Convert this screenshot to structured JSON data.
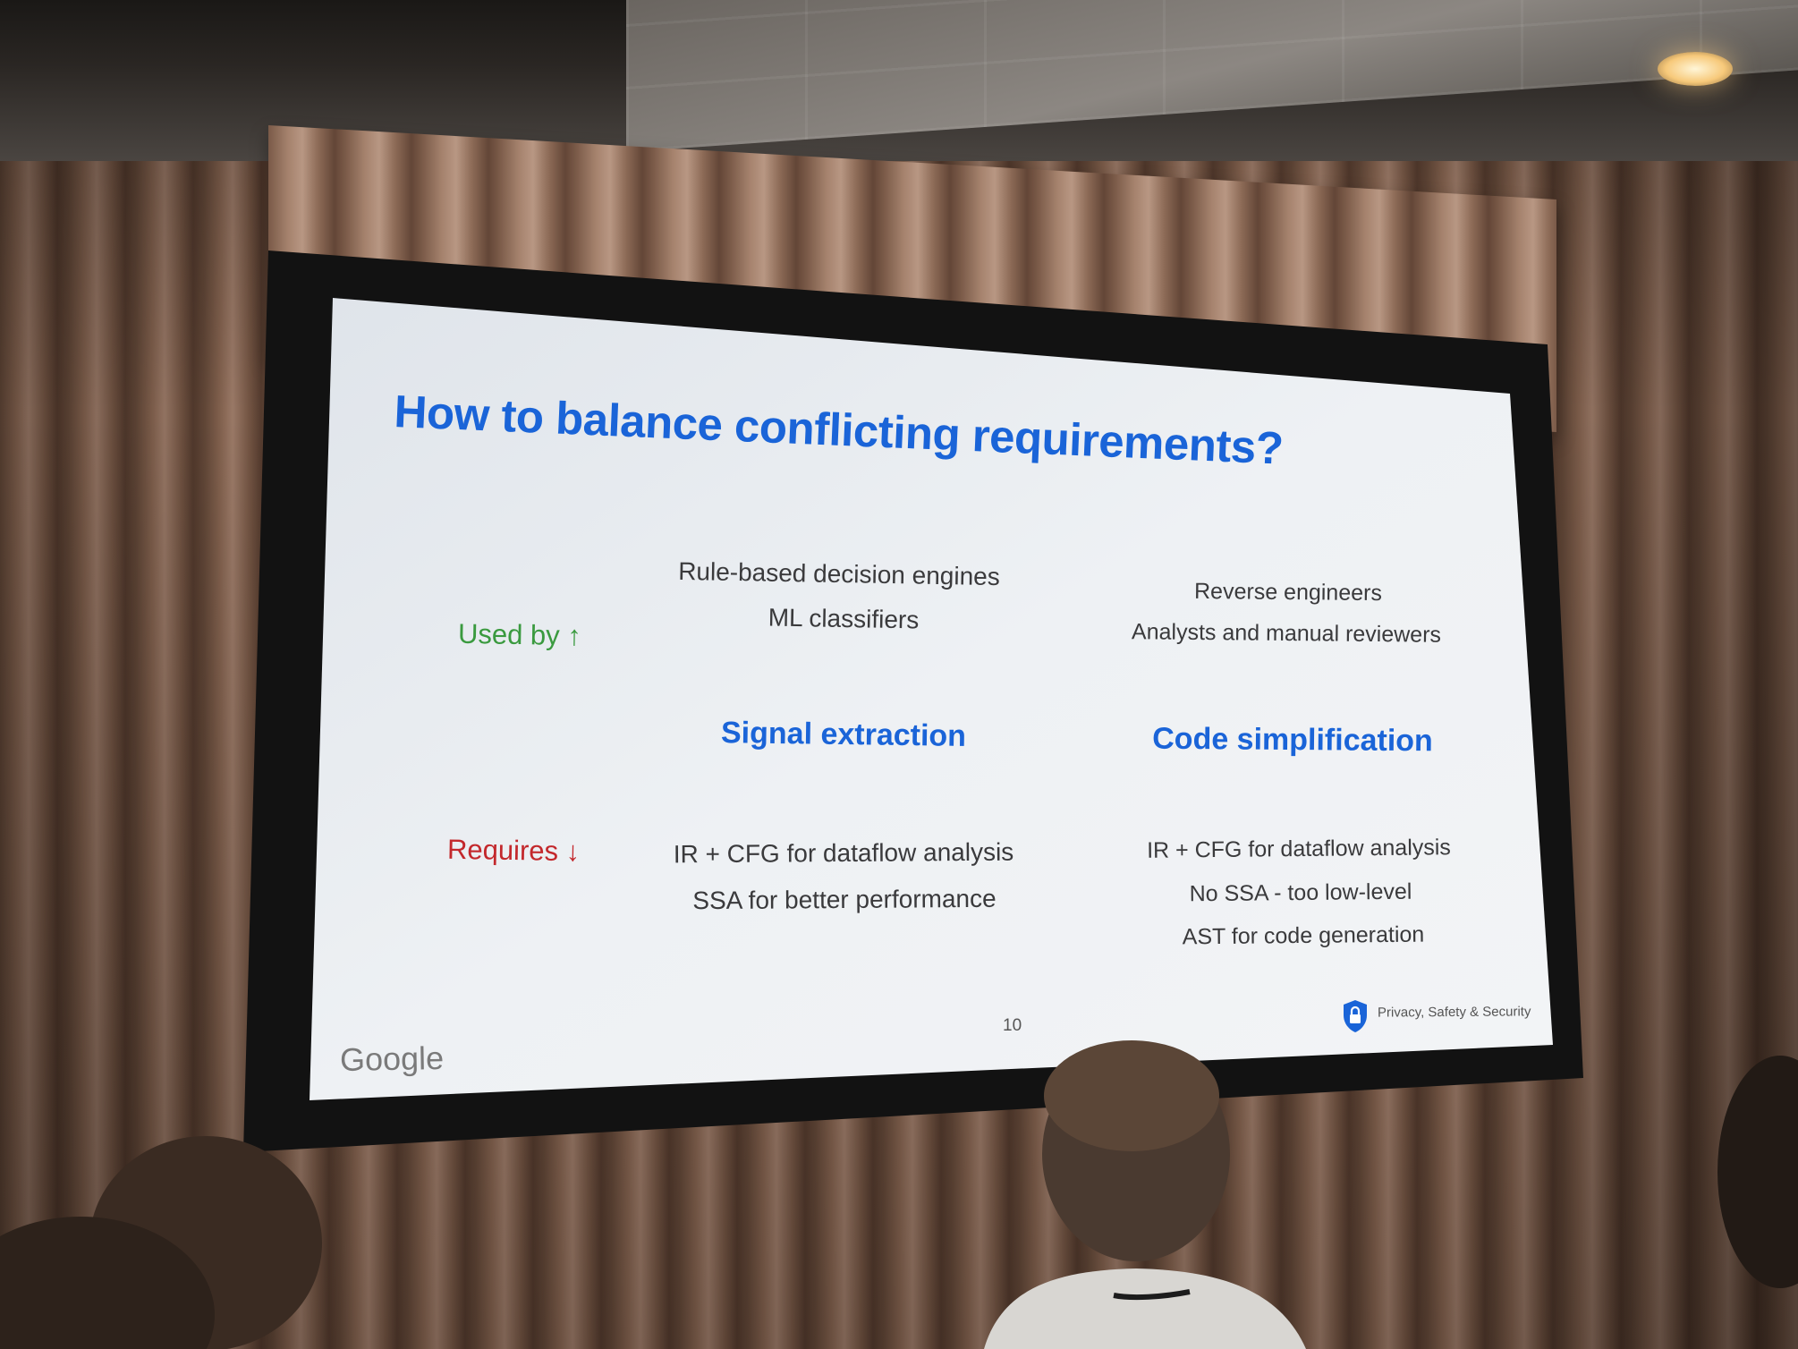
{
  "slide": {
    "title": "How to balance conflicting requirements?",
    "row_labels": {
      "used_by": "Used by ↑",
      "requires": "Requires ↓"
    },
    "columns": [
      {
        "heading": "Signal extraction",
        "used_by": [
          "Rule-based decision engines",
          "ML classifiers"
        ],
        "requires": [
          "IR + CFG for dataflow analysis",
          "SSA for better performance"
        ]
      },
      {
        "heading": "Code simplification",
        "used_by": [
          "Reverse engineers",
          "Analysts and manual reviewers"
        ],
        "requires": [
          "IR + CFG for dataflow analysis",
          "No SSA - too low-level",
          "AST for code generation"
        ]
      }
    ],
    "page_number": "10",
    "footer_logo": "Google",
    "footer_badge": "Privacy, Safety & Security",
    "footer_badge_icon": "shield-lock-icon"
  },
  "colors": {
    "title_blue": "#1a64d8",
    "used_by_green": "#3a9a3f",
    "requires_red": "#c3282c",
    "body_text": "#3a3a3c"
  }
}
